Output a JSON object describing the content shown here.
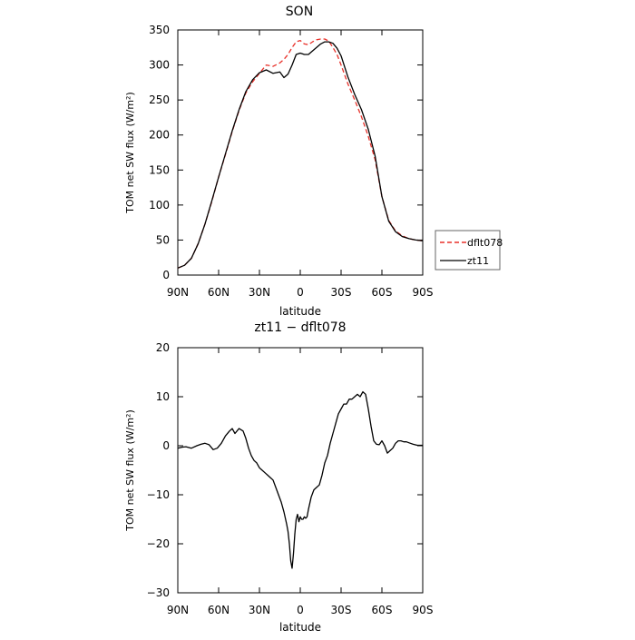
{
  "chart_data": [
    {
      "type": "line",
      "title": "SON",
      "xlabel": "latitude",
      "ylabel": "TOM net SW flux (W/m²)",
      "xlim": [
        90,
        -90
      ],
      "ylim": [
        0,
        350
      ],
      "x_ticks": [
        90,
        60,
        30,
        0,
        -30,
        -60,
        -90
      ],
      "x_tick_labels": [
        "90N",
        "60N",
        "30N",
        "0",
        "30S",
        "60S",
        "90S"
      ],
      "y_ticks": [
        0,
        50,
        100,
        150,
        200,
        250,
        300,
        350
      ],
      "y_tick_labels": [
        "0",
        "50",
        "100",
        "150",
        "200",
        "250",
        "300",
        "350"
      ],
      "legend_placement": "right",
      "series": [
        {
          "name": "dflt078",
          "color": "#e8312a",
          "dash": "dashed",
          "x": [
            90,
            85,
            80,
            75,
            70,
            65,
            60,
            55,
            50,
            45,
            40,
            35,
            30,
            25,
            20,
            15,
            12,
            9,
            6,
            3,
            0,
            -3,
            -6,
            -9,
            -12,
            -15,
            -18,
            -21,
            -24,
            -27,
            -30,
            -35,
            -40,
            -45,
            -50,
            -55,
            -60,
            -65,
            -70,
            -75,
            -80,
            -85,
            -90
          ],
          "values": [
            10,
            14,
            24,
            45,
            73,
            105,
            140,
            172,
            205,
            235,
            260,
            276,
            288,
            300,
            298,
            303,
            308,
            315,
            325,
            333,
            335,
            330,
            329,
            333,
            336,
            337,
            337,
            334,
            325,
            315,
            300,
            273,
            250,
            226,
            198,
            165,
            112,
            78,
            63,
            56,
            52,
            50,
            49
          ]
        },
        {
          "name": "zt11",
          "color": "#000000",
          "dash": "solid",
          "x": [
            90,
            85,
            80,
            75,
            70,
            65,
            60,
            55,
            50,
            45,
            40,
            35,
            30,
            25,
            20,
            15,
            12,
            9,
            6,
            3,
            0,
            -3,
            -6,
            -9,
            -12,
            -15,
            -18,
            -21,
            -24,
            -27,
            -30,
            -35,
            -40,
            -45,
            -50,
            -55,
            -60,
            -65,
            -70,
            -75,
            -80,
            -85,
            -90
          ],
          "values": [
            10,
            14,
            24,
            45,
            73,
            106,
            140,
            173,
            206,
            236,
            262,
            279,
            289,
            293,
            288,
            290,
            282,
            287,
            300,
            315,
            317,
            315,
            315,
            320,
            325,
            330,
            333,
            333,
            331,
            324,
            313,
            283,
            258,
            236,
            208,
            170,
            112,
            77,
            62,
            55,
            52,
            50,
            49
          ]
        }
      ]
    },
    {
      "type": "line",
      "title": "zt11 − dflt078",
      "xlabel": "latitude",
      "ylabel": "TOM net SW flux (W/m²)",
      "xlim": [
        90,
        -90
      ],
      "ylim": [
        -30,
        20
      ],
      "x_ticks": [
        90,
        60,
        30,
        0,
        -30,
        -60,
        -90
      ],
      "x_tick_labels": [
        "90N",
        "60N",
        "30N",
        "0",
        "30S",
        "60S",
        "90S"
      ],
      "y_ticks": [
        -30,
        -20,
        -10,
        0,
        10,
        20
      ],
      "y_tick_labels": [
        "−30",
        "−20",
        "−10",
        "0",
        "10",
        "20"
      ],
      "series": [
        {
          "color": "#000000",
          "dash": "solid",
          "x": [
            90,
            87,
            84,
            80,
            76,
            73,
            70,
            67,
            64,
            61,
            58,
            55,
            52,
            50,
            48,
            45,
            42,
            40,
            38,
            36,
            34,
            32,
            30,
            28,
            26,
            24,
            22,
            20,
            18,
            16,
            14,
            12,
            10,
            9,
            8,
            7,
            6,
            5,
            4,
            3,
            2,
            1,
            0,
            -1,
            -2,
            -3,
            -4,
            -5,
            -6,
            -8,
            -10,
            -12,
            -14,
            -16,
            -18,
            -20,
            -22,
            -24,
            -26,
            -28,
            -30,
            -32,
            -34,
            -36,
            -38,
            -40,
            -42,
            -44,
            -46,
            -48,
            -50,
            -52,
            -54,
            -56,
            -58,
            -60,
            -62,
            -64,
            -66,
            -68,
            -70,
            -72,
            -74,
            -76,
            -78,
            -80,
            -83,
            -86,
            -90
          ],
          "values": [
            -0.5,
            -0.3,
            -0.2,
            -0.5,
            0,
            0.3,
            0.5,
            0.2,
            -0.8,
            -0.5,
            0.5,
            2.0,
            3.0,
            3.5,
            2.5,
            3.5,
            3.0,
            1.5,
            -0.5,
            -2.0,
            -3.0,
            -3.5,
            -4.5,
            -5.0,
            -5.5,
            -6.0,
            -6.5,
            -7.0,
            -8.5,
            -10.0,
            -11.5,
            -13.5,
            -16.0,
            -17.5,
            -20.0,
            -23.5,
            -25.0,
            -22.0,
            -18.0,
            -15.0,
            -14.0,
            -15.5,
            -14.5,
            -15.0,
            -15.0,
            -14.5,
            -14.8,
            -14.5,
            -13.0,
            -10.5,
            -9.0,
            -8.5,
            -8.0,
            -6.0,
            -3.5,
            -2.0,
            0.5,
            2.5,
            4.5,
            6.5,
            7.5,
            8.5,
            8.5,
            9.5,
            9.5,
            10.0,
            10.5,
            10.0,
            11.0,
            10.5,
            7.5,
            4.0,
            1.0,
            0.3,
            0.2,
            1.0,
            0.0,
            -1.5,
            -1.0,
            -0.5,
            0.5,
            1.0,
            1.0,
            0.8,
            0.8,
            0.6,
            0.3,
            0.1,
            0.1
          ]
        }
      ]
    }
  ]
}
